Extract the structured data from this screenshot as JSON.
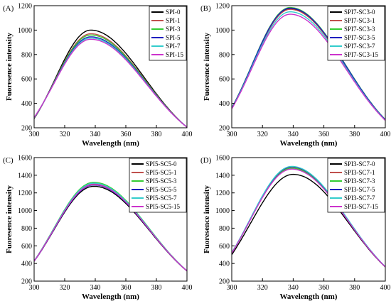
{
  "chart_data": [
    {
      "type": "line",
      "panel_label": "(A)",
      "xlabel": "Wavelength (nm)",
      "ylabel": "Fuoresence intensity",
      "xlim": [
        300,
        400
      ],
      "ylim": [
        200,
        1200
      ],
      "xticks": [
        300,
        320,
        340,
        360,
        380,
        400
      ],
      "yticks": [
        200,
        400,
        600,
        800,
        1000,
        1200
      ],
      "legend_position": "top-right",
      "grid": false,
      "series": [
        {
          "name": "SPI-0",
          "color": "#000000",
          "peak_x": 337,
          "peak_y": 1000,
          "start_y": 275,
          "end_y": 205
        },
        {
          "name": "SPI-1",
          "color": "#c0504d",
          "peak_x": 337,
          "peak_y": 970,
          "start_y": 278,
          "end_y": 205
        },
        {
          "name": "SPI-3",
          "color": "#33cc33",
          "peak_x": 337,
          "peak_y": 960,
          "start_y": 280,
          "end_y": 205
        },
        {
          "name": "SPI-5",
          "color": "#1f1fbf",
          "peak_x": 337,
          "peak_y": 945,
          "start_y": 282,
          "end_y": 205
        },
        {
          "name": "SPI-7",
          "color": "#33cccc",
          "peak_x": 337,
          "peak_y": 935,
          "start_y": 283,
          "end_y": 205
        },
        {
          "name": "SPI-15",
          "color": "#cc33cc",
          "peak_x": 337,
          "peak_y": 925,
          "start_y": 285,
          "end_y": 205
        }
      ]
    },
    {
      "type": "line",
      "panel_label": "(B)",
      "xlabel": "Wavelength (nm)",
      "ylabel": "Fuoresence intensity",
      "xlim": [
        300,
        400
      ],
      "ylim": [
        200,
        1200
      ],
      "xticks": [
        300,
        320,
        340,
        360,
        380,
        400
      ],
      "yticks": [
        200,
        400,
        600,
        800,
        1000,
        1200
      ],
      "legend_position": "top-right",
      "grid": false,
      "series": [
        {
          "name": "SPI7-SC3-0",
          "color": "#000000",
          "peak_x": 338,
          "peak_y": 1175,
          "start_y": 360,
          "end_y": 265
        },
        {
          "name": "SPI7-SC3-1",
          "color": "#c0504d",
          "peak_x": 338,
          "peak_y": 1170,
          "start_y": 362,
          "end_y": 265
        },
        {
          "name": "SPI7-SC3-3",
          "color": "#33cc33",
          "peak_x": 338,
          "peak_y": 1185,
          "start_y": 365,
          "end_y": 268
        },
        {
          "name": "SPI7-SC3-5",
          "color": "#1f1fbf",
          "peak_x": 338,
          "peak_y": 1180,
          "start_y": 362,
          "end_y": 266
        },
        {
          "name": "SPI7-SC3-7",
          "color": "#33cccc",
          "peak_x": 338,
          "peak_y": 1150,
          "start_y": 358,
          "end_y": 262
        },
        {
          "name": "SPI7-SC3-15",
          "color": "#cc33cc",
          "peak_x": 338,
          "peak_y": 1130,
          "start_y": 355,
          "end_y": 260
        }
      ]
    },
    {
      "type": "line",
      "panel_label": "(C)",
      "xlabel": "Wavelength (nm)",
      "ylabel": "Fuoresence intensity",
      "xlim": [
        300,
        400
      ],
      "ylim": [
        200,
        1600
      ],
      "xticks": [
        300,
        320,
        340,
        360,
        380,
        400
      ],
      "yticks": [
        200,
        400,
        600,
        800,
        1000,
        1200,
        1400,
        1600
      ],
      "legend_position": "top-right",
      "grid": false,
      "series": [
        {
          "name": "SPI5-SC5-0",
          "color": "#000000",
          "peak_x": 339,
          "peak_y": 1275,
          "start_y": 425,
          "end_y": 315
        },
        {
          "name": "SPI5-SC5-1",
          "color": "#c0504d",
          "peak_x": 339,
          "peak_y": 1300,
          "start_y": 428,
          "end_y": 315
        },
        {
          "name": "SPI5-SC5-3",
          "color": "#33cc33",
          "peak_x": 339,
          "peak_y": 1320,
          "start_y": 430,
          "end_y": 318
        },
        {
          "name": "SPI5-SC5-5",
          "color": "#1f1fbf",
          "peak_x": 339,
          "peak_y": 1290,
          "start_y": 426,
          "end_y": 316
        },
        {
          "name": "SPI5-SC5-7",
          "color": "#33cccc",
          "peak_x": 339,
          "peak_y": 1310,
          "start_y": 429,
          "end_y": 317
        },
        {
          "name": "SPI5-SC5-15",
          "color": "#cc33cc",
          "peak_x": 339,
          "peak_y": 1295,
          "start_y": 427,
          "end_y": 316
        }
      ]
    },
    {
      "type": "line",
      "panel_label": "(D)",
      "xlabel": "Wavelength (nm)",
      "ylabel": "Fuoresence intensity",
      "xlim": [
        300,
        400
      ],
      "ylim": [
        200,
        1600
      ],
      "xticks": [
        300,
        320,
        340,
        360,
        380,
        400
      ],
      "yticks": [
        200,
        400,
        600,
        800,
        1000,
        1200,
        1400,
        1600
      ],
      "legend_position": "top-right",
      "grid": false,
      "series": [
        {
          "name": "SPI3-SC7-0",
          "color": "#000000",
          "peak_x": 340,
          "peak_y": 1410,
          "start_y": 500,
          "end_y": 360
        },
        {
          "name": "SPI3-SC7-1",
          "color": "#c0504d",
          "peak_x": 339,
          "peak_y": 1490,
          "start_y": 520,
          "end_y": 362
        },
        {
          "name": "SPI3-SC7-3",
          "color": "#33cc33",
          "peak_x": 339,
          "peak_y": 1480,
          "start_y": 520,
          "end_y": 362
        },
        {
          "name": "SPI3-SC7-5",
          "color": "#1f1fbf",
          "peak_x": 339,
          "peak_y": 1495,
          "start_y": 522,
          "end_y": 363
        },
        {
          "name": "SPI3-SC7-7",
          "color": "#33cccc",
          "peak_x": 339,
          "peak_y": 1500,
          "start_y": 522,
          "end_y": 363
        },
        {
          "name": "SPI3-SC7-15",
          "color": "#cc33cc",
          "peak_x": 339,
          "peak_y": 1470,
          "start_y": 518,
          "end_y": 361
        }
      ]
    }
  ]
}
